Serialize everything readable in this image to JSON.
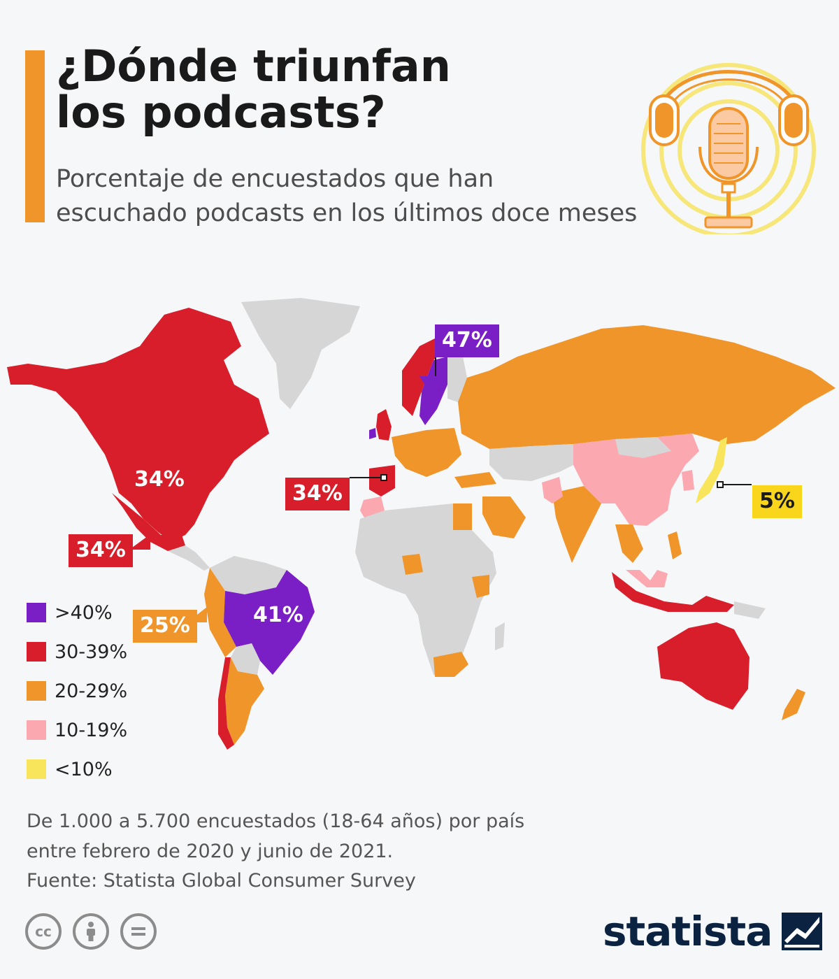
{
  "header": {
    "title_lines": [
      "¿Dónde triunfan",
      "los podcasts?"
    ],
    "subtitle_lines": [
      "Porcentaje de encuestados que han",
      "escuchado podcasts en los últimos doce meses"
    ]
  },
  "colors": {
    "accent": "#f0952a",
    "over_40": "#7a1ec6",
    "range_30_39": "#d81e2a",
    "range_20_29": "#f0952a",
    "range_10_19": "#fca8b0",
    "under_10": "#f9e55b",
    "no_data": "#d6d6d6"
  },
  "map_data": {
    "highlighted_values": [
      {
        "label": "47%",
        "value": 47,
        "category": "over_40"
      },
      {
        "label": "34%",
        "value": 34,
        "category": "range_30_39"
      },
      {
        "label": "34%",
        "value": 34,
        "category": "range_30_39"
      },
      {
        "label": "34%",
        "value": 34,
        "category": "range_30_39"
      },
      {
        "label": "41%",
        "value": 41,
        "category": "over_40"
      },
      {
        "label": "25%",
        "value": 25,
        "category": "range_20_29"
      },
      {
        "label": "5%",
        "value": 5,
        "category": "under_10"
      }
    ]
  },
  "callouts": {
    "north_america": "34%",
    "mexico": "34%",
    "spain": "34%",
    "sweden": "47%",
    "brazil": "41%",
    "south_america": "25%",
    "japan": "5%"
  },
  "legend": {
    "items": [
      {
        "label": ">40%",
        "color": "#7a1ec6"
      },
      {
        "label": "30-39%",
        "color": "#d81e2a"
      },
      {
        "label": "20-29%",
        "color": "#f0952a"
      },
      {
        "label": "10-19%",
        "color": "#fca8b0"
      },
      {
        "label": "<10%",
        "color": "#f9e55b"
      }
    ]
  },
  "footer": {
    "note_lines": [
      "De 1.000 a 5.700 encuestados (18-64 años) por país",
      "entre febrero de 2020 y junio de 2021."
    ],
    "source": "Fuente: Statista Global Consumer Survey",
    "license_icons": [
      "creative-commons-icon",
      "attribution-icon",
      "no-derivatives-icon"
    ],
    "brand": "statista"
  }
}
